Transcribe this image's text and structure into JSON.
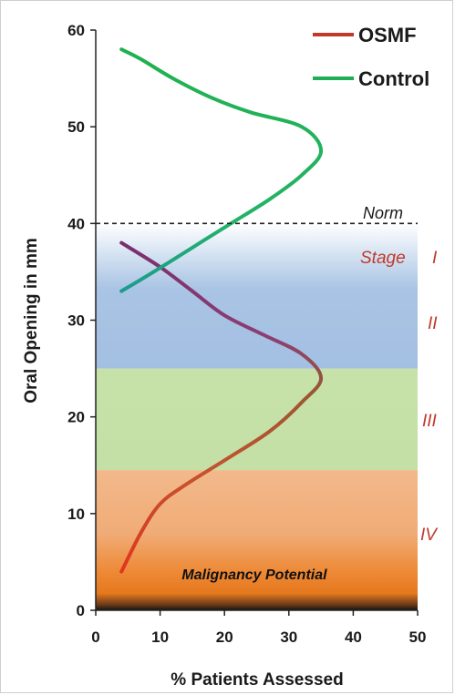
{
  "chart_data": {
    "type": "line",
    "xlabel": "% Patients Assessed",
    "ylabel": "Oral Opening in mm",
    "xlim": [
      0,
      50
    ],
    "ylim": [
      0,
      60
    ],
    "x_ticks": [
      "0",
      "10",
      "20",
      "30",
      "40",
      "50"
    ],
    "y_ticks": [
      "0",
      "10",
      "20",
      "30",
      "40",
      "50",
      "60"
    ],
    "grid": false,
    "legend_position": "top-right",
    "series": [
      {
        "name": "OSMF",
        "color": "#d4372b",
        "points": [
          {
            "x": 4,
            "y": 4
          },
          {
            "x": 7,
            "y": 8
          },
          {
            "x": 10,
            "y": 11
          },
          {
            "x": 14,
            "y": 13
          },
          {
            "x": 20,
            "y": 15.5
          },
          {
            "x": 27,
            "y": 18.5
          },
          {
            "x": 32,
            "y": 21.5
          },
          {
            "x": 35,
            "y": 24
          },
          {
            "x": 32,
            "y": 26.5
          },
          {
            "x": 26,
            "y": 28.5
          },
          {
            "x": 20,
            "y": 30.5
          },
          {
            "x": 15,
            "y": 33
          },
          {
            "x": 10,
            "y": 35.5
          },
          {
            "x": 4,
            "y": 38
          }
        ]
      },
      {
        "name": "Control",
        "color": "#1fad57",
        "points": [
          {
            "x": 4,
            "y": 33
          },
          {
            "x": 9,
            "y": 35
          },
          {
            "x": 15,
            "y": 37.5
          },
          {
            "x": 21,
            "y": 40
          },
          {
            "x": 27,
            "y": 42.5
          },
          {
            "x": 32,
            "y": 45
          },
          {
            "x": 35,
            "y": 47.5
          },
          {
            "x": 32,
            "y": 50
          },
          {
            "x": 24,
            "y": 51.5
          },
          {
            "x": 18,
            "y": 53
          },
          {
            "x": 12,
            "y": 55
          },
          {
            "x": 7,
            "y": 57
          },
          {
            "x": 4,
            "y": 58
          }
        ]
      }
    ],
    "reference_line": {
      "label": "Norm",
      "y": 40,
      "style": "dashed"
    },
    "bands": [
      {
        "label": "IV",
        "from": 0,
        "to": 14.5,
        "color": "#f0b07e"
      },
      {
        "label": "III",
        "from": 14.5,
        "to": 25,
        "color": "#c5e0a8"
      },
      {
        "label": "II",
        "from": 25,
        "to": 40,
        "color": "#a8c3e3"
      }
    ],
    "stage_labels": [
      {
        "text": "Stage",
        "y": 36.5
      },
      {
        "text": "I",
        "y": 36.5
      },
      {
        "text": "II",
        "y": 30.5
      },
      {
        "text": "III",
        "y": 19.5
      },
      {
        "text": "IV",
        "y": 8
      }
    ],
    "annotation": {
      "text": "Malignancy Potential",
      "x": 25,
      "y": 3.8
    }
  }
}
